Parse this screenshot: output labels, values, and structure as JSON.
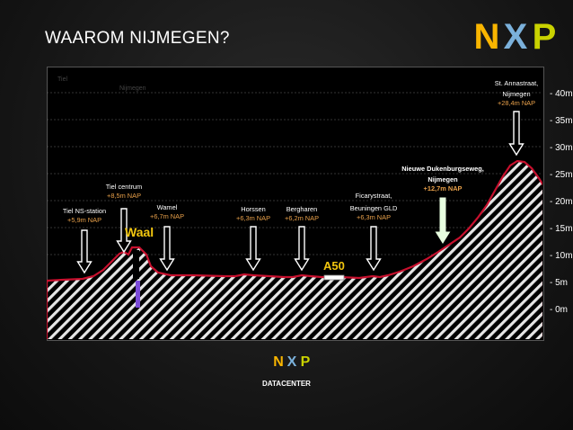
{
  "slide": {
    "title": "WAAROM NIJMEGEN?"
  },
  "logo": {
    "letters": [
      "N",
      "X",
      "P"
    ],
    "colors": [
      "#f9b500",
      "#7bb1db",
      "#c9d200"
    ]
  },
  "chart": {
    "ghost_labels": [
      "Tiel",
      "Nijmegen"
    ],
    "y_axis": {
      "unit_suffix": "m",
      "ticks": [
        "40m",
        "35m",
        "30m",
        "25m",
        "20m",
        "15m",
        "10m",
        "5m",
        "0m"
      ]
    },
    "profile_color": "#c8102e",
    "locations": [
      {
        "name": "Tiel NS-station",
        "height": "+5,9m NAP"
      },
      {
        "name": "Tiel centrum",
        "height": "+8,5m NAP"
      },
      {
        "name": "Wamel",
        "height": "+6,7m NAP"
      },
      {
        "name": "Horssen",
        "height": "+6,3m NAP"
      },
      {
        "name": "Bergharen",
        "height": "+6,2m NAP"
      },
      {
        "name": "Ficarystraat, Beuningen GLD",
        "height": "+6,3m NAP"
      },
      {
        "name": "Nieuwe Dukenburgseweg, Nijmegen",
        "height": "+12,7m NAP"
      },
      {
        "name": "St. Annastraat, Nijmegen",
        "height": "+28,4m NAP"
      }
    ],
    "waal_label": "Waal",
    "a50_label": "A50",
    "label_color": "#ffffff",
    "height_color": "#e8a04a",
    "accent_color": "#f2c60f"
  },
  "footer": {
    "label": "DATACENTER"
  }
}
